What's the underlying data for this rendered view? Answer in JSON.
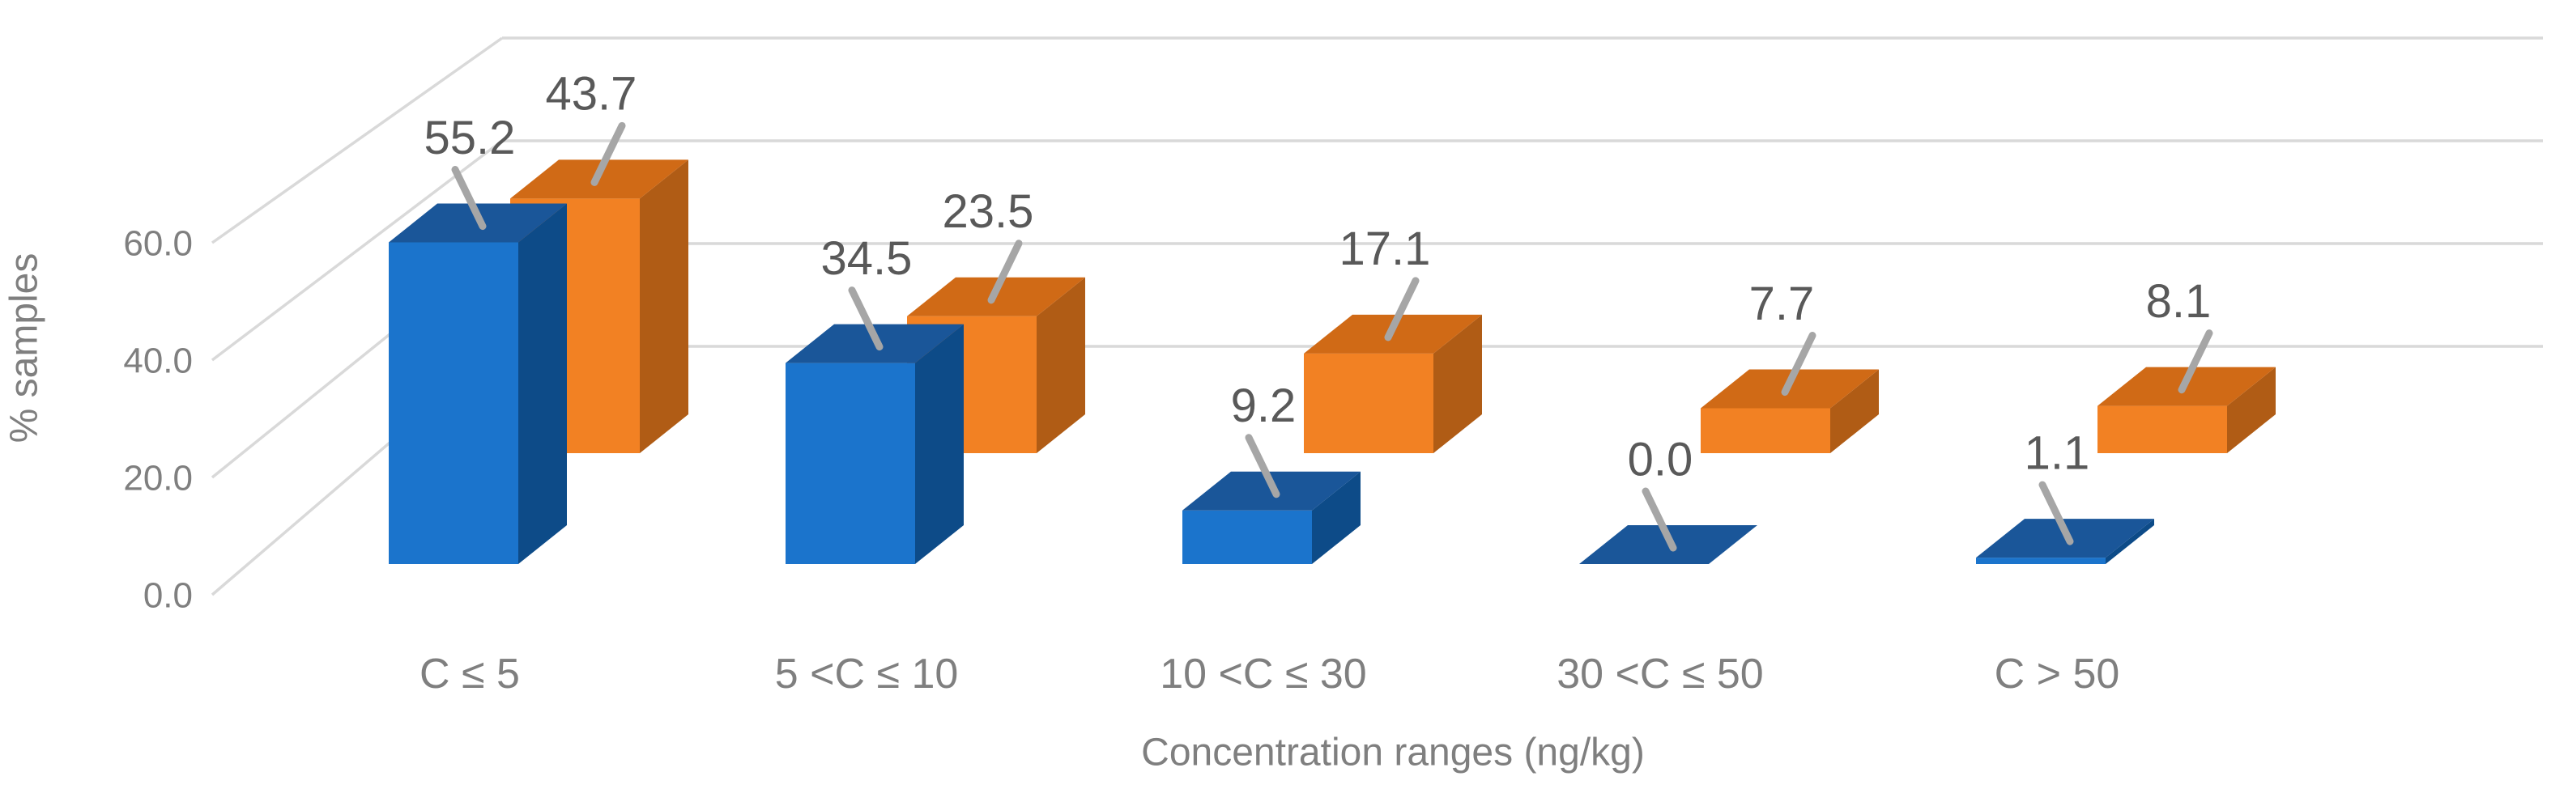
{
  "chart_data": {
    "type": "bar",
    "projection": "3d-perspective",
    "title": "",
    "xlabel": "Concentration ranges (ng/kg)",
    "ylabel": "% samples",
    "categories": [
      "C ≤ 5",
      "5 <C ≤ 10",
      "10 <C ≤ 30",
      "30 <C ≤ 50",
      "C > 50"
    ],
    "series": [
      {
        "name": "blue-series",
        "color_front": "#1B74CC",
        "color_top": "#1A5699",
        "color_side": "#0D4B88",
        "values": [
          55.2,
          34.5,
          9.2,
          0.0,
          1.1
        ],
        "data_labels": [
          "55.2",
          "34.5",
          "9.2",
          "0.0",
          "1.1"
        ]
      },
      {
        "name": "orange-series",
        "color_front": "#F28123",
        "color_top": "#D06A16",
        "color_side": "#B05C15",
        "values": [
          43.7,
          23.5,
          17.1,
          7.7,
          8.1
        ],
        "data_labels": [
          "43.7",
          "23.5",
          "17.1",
          "7.7",
          "8.1"
        ]
      }
    ],
    "y_ticks": [
      {
        "value": 0,
        "label": "0.0"
      },
      {
        "value": 20,
        "label": "20.0"
      },
      {
        "value": 40,
        "label": "40.0"
      },
      {
        "value": 60,
        "label": "60.0"
      }
    ],
    "ylim": [
      0,
      80
    ],
    "grid": true,
    "legend": false,
    "colors": {
      "gridline": "#D9D9D9",
      "leader_line": "#A6A6A6",
      "value_label": "#595959",
      "axis_text": "#7F7F7F",
      "background": "#FFFFFF"
    }
  }
}
